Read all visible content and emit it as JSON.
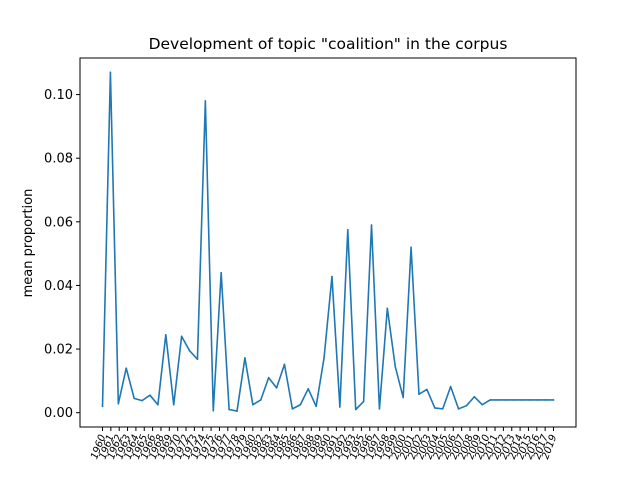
{
  "chart_data": {
    "type": "line",
    "title": "Development of topic \"coalition\" in the corpus",
    "xlabel": "",
    "ylabel": "mean proportion",
    "x": [
      "1960",
      "1961",
      "1962",
      "1963",
      "1964",
      "1965",
      "1966",
      "1967",
      "1969",
      "1970",
      "1972",
      "1973",
      "1974",
      "1975",
      "1976",
      "1977",
      "1978",
      "1979",
      "1980",
      "1981",
      "1982",
      "1983",
      "1984",
      "1985",
      "1986",
      "1987",
      "1988",
      "1989",
      "1990",
      "1991",
      "1992",
      "1993",
      "1994",
      "1995",
      "1996",
      "1997",
      "1998",
      "1999",
      "2000",
      "2001",
      "2002",
      "2003",
      "2004",
      "2005",
      "2006",
      "2007",
      "2008",
      "2009",
      "2010",
      "2011",
      "2012",
      "2013",
      "2014",
      "2015",
      "2016",
      "2017",
      "2018",
      "2019"
    ],
    "xtick_labels": [
      "1960",
      "1961",
      "1962",
      "1963",
      "1964",
      "1965",
      "1966",
      "1968",
      "1969",
      "1970",
      "1972",
      "1973",
      "1974",
      "1975",
      "1976",
      "1977",
      "1978",
      "1979",
      "1980",
      "1982",
      "1983",
      "1984",
      "1985",
      "1986",
      "1987",
      "1988",
      "1989",
      "1990",
      "1991",
      "1992",
      "1993",
      "1995",
      "1996",
      "1997",
      "1998",
      "1999",
      "2000",
      "2001",
      "2002",
      "2003",
      "2004",
      "2005",
      "2006",
      "2007",
      "2008",
      "2009",
      "2010",
      "2011",
      "2012",
      "2013",
      "2014",
      "2015",
      "2016",
      "2017",
      "2019"
    ],
    "series": [
      {
        "values": [
          0.002,
          0.107,
          0.0028,
          0.014,
          0.0045,
          0.0038,
          0.0055,
          0.0025,
          0.0245,
          0.0025,
          0.024,
          0.0195,
          0.0168,
          0.098,
          0.0006,
          0.044,
          0.001,
          0.0005,
          0.0172,
          0.0025,
          0.004,
          0.011,
          0.0078,
          0.0152,
          0.0012,
          0.0025,
          0.0075,
          0.002,
          0.0172,
          0.0428,
          0.0018,
          0.0575,
          0.001,
          0.0035,
          0.059,
          0.0012,
          0.0328,
          0.0145,
          0.0048,
          0.052,
          0.0058,
          0.0073,
          0.0015,
          0.0012,
          0.0082,
          0.0012,
          0.0022,
          0.005,
          0.0025,
          0.004,
          0.004,
          0.004,
          0.004,
          0.004,
          0.004,
          0.004,
          0.004,
          0.004
        ],
        "color": "#1f77b4"
      }
    ],
    "yticks": [
      "0.00",
      "0.02",
      "0.04",
      "0.06",
      "0.08",
      "0.10"
    ],
    "ylim": [
      -0.0045,
      0.1115
    ],
    "grid": false,
    "legend": "none"
  }
}
